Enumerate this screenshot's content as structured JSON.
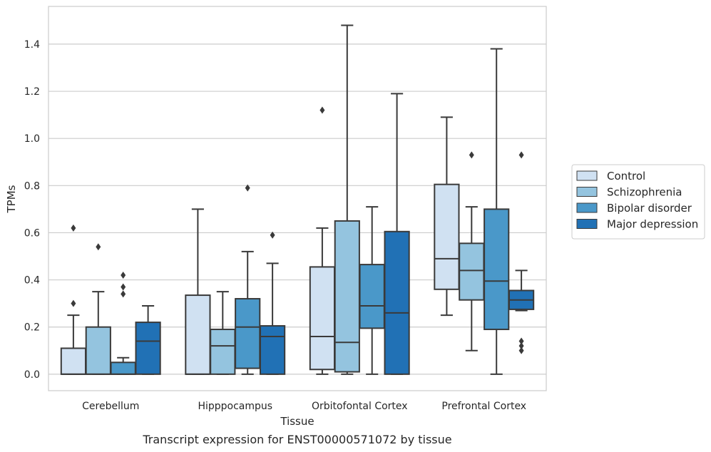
{
  "chart_data": {
    "type": "box",
    "xlabel": "Tissue",
    "ylabel": "TPMs",
    "caption": "Transcript expression for ENST00000571072 by tissue",
    "ylim": [
      -0.07,
      1.56
    ],
    "yticks": [
      0.0,
      0.2,
      0.4,
      0.6,
      0.8,
      1.0,
      1.2,
      1.4
    ],
    "ytick_labels": [
      "0.0",
      "0.2",
      "0.4",
      "0.6",
      "0.8",
      "1.0",
      "1.2",
      "1.4"
    ],
    "grid": "horizontal",
    "legend_position": "right",
    "categories": [
      "Cerebellum",
      "Hipppocampus",
      "Orbitofontal Cortex",
      "Prefrontal Cortex"
    ],
    "series": [
      {
        "name": "Control",
        "color": "#d0e1f2",
        "boxes": [
          {
            "whisker_low": 0.0,
            "q1": 0.0,
            "median": 0.0,
            "q3": 0.11,
            "whisker_high": 0.25,
            "outliers": [
              0.3,
              0.62
            ]
          },
          {
            "whisker_low": 0.0,
            "q1": 0.0,
            "median": 0.0,
            "q3": 0.335,
            "whisker_high": 0.7,
            "outliers": []
          },
          {
            "whisker_low": 0.0,
            "q1": 0.02,
            "median": 0.16,
            "q3": 0.455,
            "whisker_high": 0.62,
            "outliers": [
              1.12
            ]
          },
          {
            "whisker_low": 0.25,
            "q1": 0.36,
            "median": 0.49,
            "q3": 0.805,
            "whisker_high": 1.09,
            "outliers": []
          }
        ]
      },
      {
        "name": "Schizophrenia",
        "color": "#94c4df",
        "boxes": [
          {
            "whisker_low": 0.0,
            "q1": 0.0,
            "median": 0.0,
            "q3": 0.2,
            "whisker_high": 0.35,
            "outliers": [
              0.54
            ]
          },
          {
            "whisker_low": 0.0,
            "q1": 0.0,
            "median": 0.12,
            "q3": 0.19,
            "whisker_high": 0.35,
            "outliers": []
          },
          {
            "whisker_low": 0.0,
            "q1": 0.01,
            "median": 0.135,
            "q3": 0.65,
            "whisker_high": 1.48,
            "outliers": []
          },
          {
            "whisker_low": 0.1,
            "q1": 0.315,
            "median": 0.44,
            "q3": 0.555,
            "whisker_high": 0.71,
            "outliers": [
              0.93
            ]
          }
        ]
      },
      {
        "name": "Bipolar disorder",
        "color": "#4a98c9",
        "boxes": [
          {
            "whisker_low": 0.0,
            "q1": 0.0,
            "median": 0.0,
            "q3": 0.05,
            "whisker_high": 0.07,
            "outliers": [
              0.34,
              0.37,
              0.42
            ]
          },
          {
            "whisker_low": 0.0,
            "q1": 0.025,
            "median": 0.2,
            "q3": 0.32,
            "whisker_high": 0.52,
            "outliers": [
              0.79
            ]
          },
          {
            "whisker_low": 0.0,
            "q1": 0.195,
            "median": 0.29,
            "q3": 0.465,
            "whisker_high": 0.71,
            "outliers": []
          },
          {
            "whisker_low": 0.0,
            "q1": 0.19,
            "median": 0.395,
            "q3": 0.7,
            "whisker_high": 1.38,
            "outliers": []
          }
        ]
      },
      {
        "name": "Major depression",
        "color": "#2171b5",
        "boxes": [
          {
            "whisker_low": 0.0,
            "q1": 0.0,
            "median": 0.14,
            "q3": 0.22,
            "whisker_high": 0.29,
            "outliers": []
          },
          {
            "whisker_low": 0.0,
            "q1": 0.0,
            "median": 0.16,
            "q3": 0.205,
            "whisker_high": 0.47,
            "outliers": [
              0.59
            ]
          },
          {
            "whisker_low": 0.0,
            "q1": 0.0,
            "median": 0.26,
            "q3": 0.605,
            "whisker_high": 1.19,
            "outliers": []
          },
          {
            "whisker_low": 0.27,
            "q1": 0.275,
            "median": 0.315,
            "q3": 0.355,
            "whisker_high": 0.44,
            "outliers": [
              0.1,
              0.12,
              0.14,
              0.93
            ]
          }
        ]
      }
    ]
  }
}
